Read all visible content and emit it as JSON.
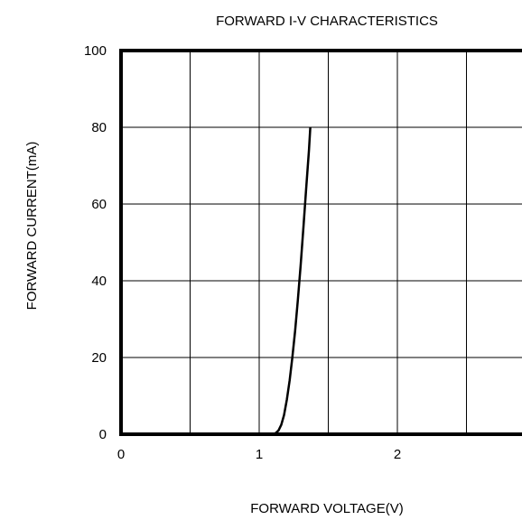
{
  "chart_data": {
    "type": "line",
    "title": "FORWARD I-V CHARACTERISTICS",
    "xlabel": "FORWARD VOLTAGE(V)",
    "ylabel": "FORWARD CURRENT(mA)",
    "xlim": [
      0,
      3
    ],
    "ylim": [
      0,
      100
    ],
    "x_ticks": [
      0,
      1,
      2
    ],
    "y_ticks": [
      0,
      20,
      40,
      60,
      80,
      100
    ],
    "grid": true,
    "series": [
      {
        "x": [
          1.0,
          1.05,
          1.1,
          1.12,
          1.14,
          1.16,
          1.18,
          1.2,
          1.22,
          1.24,
          1.26,
          1.28,
          1.3,
          1.32,
          1.34,
          1.36,
          1.37
        ],
        "y": [
          0,
          0,
          0,
          0.3,
          1,
          2.5,
          5,
          9,
          14,
          20,
          27,
          35,
          44,
          54,
          64,
          74,
          80
        ]
      }
    ]
  }
}
